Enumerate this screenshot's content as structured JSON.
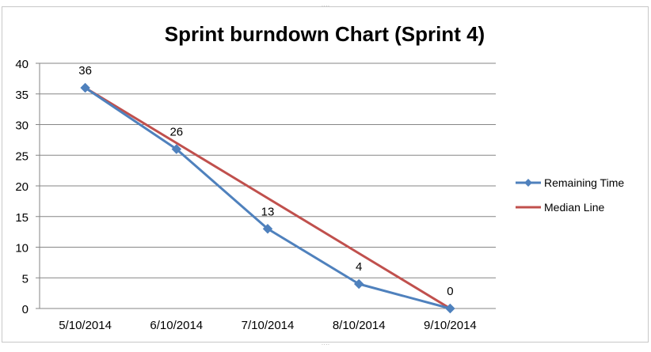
{
  "chart_data": {
    "type": "line",
    "title": "Sprint burndown Chart (Sprint 4)",
    "categories": [
      "5/10/2014",
      "6/10/2014",
      "7/10/2014",
      "8/10/2014",
      "9/10/2014"
    ],
    "ylim": [
      0,
      40
    ],
    "yticks": [
      0,
      5,
      10,
      15,
      20,
      25,
      30,
      35,
      40
    ],
    "grid": true,
    "legend_position": "right",
    "series": [
      {
        "name": "Remaining Time",
        "values": [
          36,
          26,
          13,
          4,
          0
        ],
        "color": "#4F81BD",
        "marker": "diamond",
        "data_labels": [
          "36",
          "26",
          "13",
          "4",
          "0"
        ]
      },
      {
        "name": "Median Line",
        "values": [
          36,
          27,
          18,
          9,
          0
        ],
        "color": "#C0504D",
        "marker": "none"
      }
    ]
  }
}
